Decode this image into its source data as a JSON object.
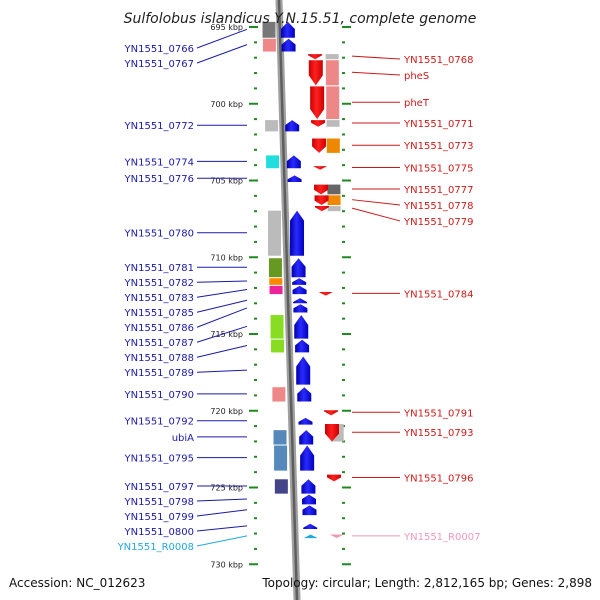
{
  "title": "Sulfolobus islandicus Y.N.15.51, complete genome",
  "footer": {
    "accession": "Accession: NC_012623",
    "summary": "Topology: circular; Length: 2,812,165 bp; Genes: 2,898"
  },
  "colors": {
    "left_label": "#1a1aa8",
    "right_label": "#cc1a1a",
    "rna_left": "#22a8e0",
    "rna_right": "#ee99bb",
    "minor_tick": "#228822",
    "backbone": "#8c8c8c"
  },
  "ticks": [
    {
      "label": "695 kbp",
      "kbp": 695
    },
    {
      "label": "700 kbp",
      "kbp": 700
    },
    {
      "label": "705 kbp",
      "kbp": 705
    },
    {
      "label": "710 kbp",
      "kbp": 710
    },
    {
      "label": "715 kbp",
      "kbp": 715
    },
    {
      "label": "720 kbp",
      "kbp": 720
    },
    {
      "label": "725 kbp",
      "kbp": 725
    },
    {
      "label": "730 kbp",
      "kbp": 730
    }
  ],
  "left_genes": [
    {
      "label": "YN1551_0766",
      "start": 694.6,
      "end": 695.7,
      "cog": "#777777"
    },
    {
      "label": "YN1551_0767",
      "start": 695.7,
      "end": 696.6,
      "cog": "#ee8888"
    },
    {
      "label": "YN1551_0772",
      "start": 701.0,
      "end": 701.8,
      "cog": "#bbbbbb"
    },
    {
      "label": "YN1551_0774",
      "start": 703.3,
      "end": 704.2,
      "cog": "#22dddd"
    },
    {
      "label": "YN1551_0776",
      "start": 704.6,
      "end": 705.1,
      "cog": ""
    },
    {
      "label": "YN1551_0780",
      "start": 706.9,
      "end": 709.9,
      "cog": "#bbbbbb"
    },
    {
      "label": "YN1551_0781",
      "start": 710.0,
      "end": 711.3,
      "cog": "#669922"
    },
    {
      "label": "YN1551_0782",
      "start": 711.3,
      "end": 711.8,
      "cog": "#ff8800"
    },
    {
      "label": "YN1551_0783",
      "start": 711.8,
      "end": 712.4,
      "cog": "#ee2299"
    },
    {
      "label": "YN1551_0785",
      "start": 712.6,
      "end": 713.0,
      "cog": ""
    },
    {
      "label": "YN1551_0786",
      "start": 713.0,
      "end": 713.6,
      "cog": ""
    },
    {
      "label": "YN1551_0787",
      "start": 713.7,
      "end": 715.3,
      "cog": "#88dd22"
    },
    {
      "label": "YN1551_0788",
      "start": 715.3,
      "end": 716.2,
      "cog": "#88dd22"
    },
    {
      "label": "YN1551_0789",
      "start": 716.4,
      "end": 718.3,
      "cog": ""
    },
    {
      "label": "YN1551_0790",
      "start": 718.4,
      "end": 719.4,
      "cog": "#ee8888"
    },
    {
      "label": "YN1551_0792",
      "start": 720.4,
      "end": 720.9,
      "cog": ""
    },
    {
      "label": "ubiA",
      "start": 721.2,
      "end": 722.2,
      "cog": "#5588bb"
    },
    {
      "label": "YN1551_0795",
      "start": 722.2,
      "end": 723.9,
      "cog": "#5588bb"
    },
    {
      "label": "YN1551_0797",
      "start": 724.4,
      "end": 725.4,
      "cog": "#444488"
    },
    {
      "label": "YN1551_0798",
      "start": 725.4,
      "end": 726.1,
      "cog": ""
    },
    {
      "label": "YN1551_0799",
      "start": 726.1,
      "end": 726.8,
      "cog": ""
    },
    {
      "label": "YN1551_0800",
      "start": 727.3,
      "end": 727.7,
      "cog": ""
    },
    {
      "label": "YN1551_R0008",
      "start": 728.0,
      "end": 728.3,
      "cog": "",
      "rna": true
    }
  ],
  "right_genes": [
    {
      "label": "YN1551_0768",
      "start": 696.7,
      "end": 697.1,
      "cog": "#bbbbbb"
    },
    {
      "label": "pheS",
      "start": 697.1,
      "end": 698.8,
      "cog": "#ee8888"
    },
    {
      "label": "pheT",
      "start": 698.8,
      "end": 701.0,
      "cog": "#ee8888"
    },
    {
      "label": "YN1551_0771",
      "start": 701.0,
      "end": 701.5,
      "cog": "#bbbbbb"
    },
    {
      "label": "YN1551_0773",
      "start": 702.2,
      "end": 703.2,
      "cog": "#ee8800"
    },
    {
      "label": "YN1551_0775",
      "start": 704.0,
      "end": 704.3,
      "cog": ""
    },
    {
      "label": "YN1551_0777",
      "start": 705.2,
      "end": 705.9,
      "cog": "#666666"
    },
    {
      "label": "YN1551_0778",
      "start": 705.9,
      "end": 706.6,
      "cog": "#ee8800"
    },
    {
      "label": "YN1551_0779",
      "start": 706.6,
      "end": 707.0,
      "cog": "#bbbbbb"
    },
    {
      "label": "YN1551_0784",
      "start": 712.2,
      "end": 712.5,
      "cog": ""
    },
    {
      "label": "YN1551_0791",
      "start": 719.9,
      "end": 720.3,
      "cog": ""
    },
    {
      "label": "YN1551_0793",
      "start": 720.8,
      "end": 722.0,
      "cog": "#bbbbbb"
    },
    {
      "label": "YN1551_0796",
      "start": 724.1,
      "end": 724.6,
      "cog": ""
    },
    {
      "label": "YN1551_R0007",
      "start": 728.0,
      "end": 728.3,
      "cog": "",
      "rna": true
    }
  ]
}
